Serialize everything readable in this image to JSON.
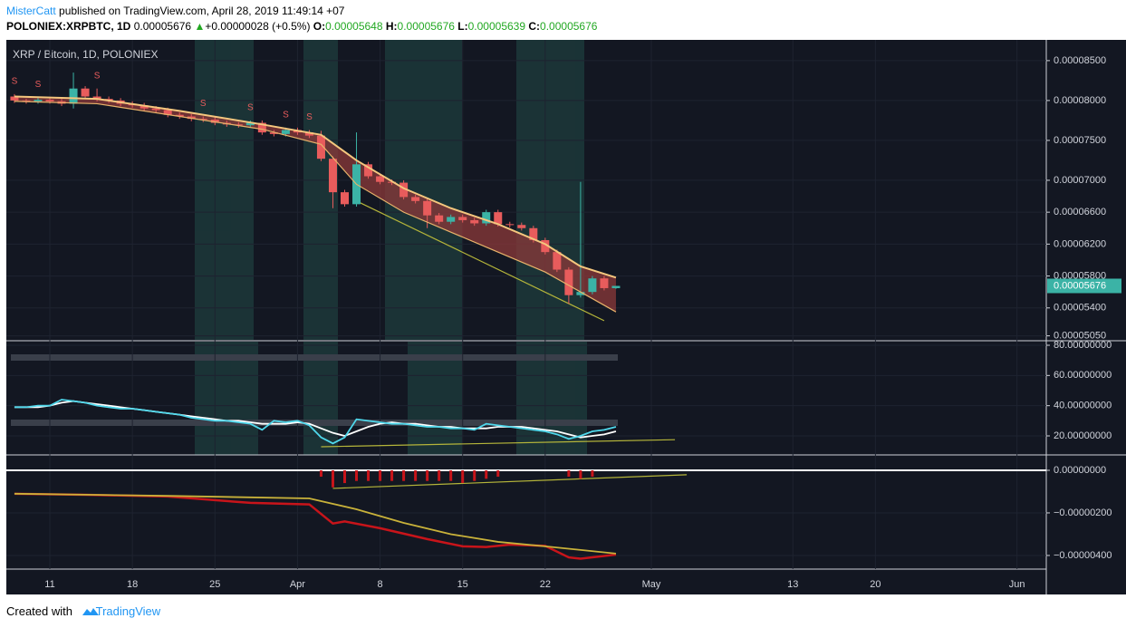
{
  "header": {
    "author": "MisterCatt",
    "published": "published on TradingView.com, April 28, 2019 11:49:14 +07",
    "symbol": "POLONIEX:XRPBTC, 1D",
    "price": "0.00005676",
    "arrow": "▲",
    "change": "+0.00000028 (+0.5%)",
    "open_label": "O:",
    "open": "0.00005648",
    "high_label": "H:",
    "high": "0.00005676",
    "low_label": "L:",
    "low": "0.00005639",
    "close_label": "C:",
    "close": "0.00005676"
  },
  "footer": {
    "created": "Created with",
    "brand": "TradingView"
  },
  "chart_data": [
    {
      "type": "candlestick",
      "title": "XRP / Bitcoin, 1D, POLONIEX",
      "up_color": "#3bb3a6",
      "down_color": "#e85c5c",
      "x": [
        "Mar 8",
        "Mar 9",
        "Mar 10",
        "Mar 11",
        "Mar 12",
        "Mar 13",
        "Mar 14",
        "Mar 15",
        "Mar 16",
        "Mar 17",
        "Mar 18",
        "Mar 19",
        "Mar 20",
        "Mar 21",
        "Mar 22",
        "Mar 23",
        "Mar 24",
        "Mar 25",
        "Mar 26",
        "Mar 27",
        "Mar 28",
        "Mar 29",
        "Mar 30",
        "Mar 31",
        "Apr 1",
        "Apr 2",
        "Apr 3",
        "Apr 4",
        "Apr 5",
        "Apr 6",
        "Apr 7",
        "Apr 8",
        "Apr 9",
        "Apr 10",
        "Apr 11",
        "Apr 12",
        "Apr 13",
        "Apr 14",
        "Apr 15",
        "Apr 16",
        "Apr 17",
        "Apr 18",
        "Apr 19",
        "Apr 20",
        "Apr 21",
        "Apr 22",
        "Apr 23",
        "Apr 24",
        "Apr 25",
        "Apr 26",
        "Apr 27",
        "Apr 28"
      ],
      "open": [
        8.05e-05,
        8e-05,
        7.99e-05,
        8.01e-05,
        7.99e-05,
        7.96e-05,
        8.15e-05,
        8.05e-05,
        8.02e-05,
        8e-05,
        7.96e-05,
        7.94e-05,
        7.9e-05,
        7.88e-05,
        7.82e-05,
        7.8e-05,
        7.77e-05,
        7.76e-05,
        7.72e-05,
        7.7e-05,
        7.69e-05,
        7.72e-05,
        7.6e-05,
        7.58e-05,
        7.63e-05,
        7.6e-05,
        7.56e-05,
        7.27e-05,
        6.85e-05,
        6.7e-05,
        7.2e-05,
        7.05e-05,
        6.98e-05,
        6.97e-05,
        6.79e-05,
        6.74e-05,
        6.56e-05,
        6.48e-05,
        6.54e-05,
        6.5e-05,
        6.46e-05,
        6.6e-05,
        6.45e-05,
        6.44e-05,
        6.4e-05,
        6.25e-05,
        6.1e-05,
        5.88e-05,
        5.56e-05,
        5.6e-05,
        5.77e-05,
        5.648e-05
      ],
      "high": [
        8.08e-05,
        8.02e-05,
        8.04e-05,
        8.04e-05,
        8.02e-05,
        8.35e-05,
        8.18e-05,
        8.15e-05,
        8.05e-05,
        8.03e-05,
        7.99e-05,
        7.97e-05,
        7.93e-05,
        7.91e-05,
        7.85e-05,
        7.83e-05,
        7.8e-05,
        7.79e-05,
        7.75e-05,
        7.73e-05,
        7.75e-05,
        7.75e-05,
        7.63e-05,
        7.66e-05,
        7.66e-05,
        7.63e-05,
        7.62e-05,
        7.3e-05,
        6.88e-05,
        7.6e-05,
        7.23e-05,
        7.08e-05,
        7.01e-05,
        7e-05,
        6.82e-05,
        6.77e-05,
        6.59e-05,
        6.57e-05,
        6.57e-05,
        6.53e-05,
        6.63e-05,
        6.63e-05,
        6.48e-05,
        6.47e-05,
        6.43e-05,
        6.28e-05,
        6.13e-05,
        5.91e-05,
        6.98e-05,
        5.8e-05,
        5.8e-05,
        5.676e-05
      ],
      "low": [
        7.97e-05,
        7.96e-05,
        7.96e-05,
        7.96e-05,
        7.93e-05,
        7.9e-05,
        8.02e-05,
        7.99e-05,
        7.97e-05,
        7.93e-05,
        7.91e-05,
        7.87e-05,
        7.85e-05,
        7.79e-05,
        7.77e-05,
        7.74e-05,
        7.73e-05,
        7.69e-05,
        7.67e-05,
        7.66e-05,
        7.66e-05,
        7.57e-05,
        7.55e-05,
        7.55e-05,
        7.57e-05,
        7.53e-05,
        7.24e-05,
        6.65e-05,
        6.67e-05,
        6.67e-05,
        7.02e-05,
        6.95e-05,
        6.94e-05,
        6.76e-05,
        6.71e-05,
        6.4e-05,
        6.45e-05,
        6.45e-05,
        6.47e-05,
        6.43e-05,
        6.43e-05,
        6.42e-05,
        6.41e-05,
        6.37e-05,
        6.22e-05,
        6.07e-05,
        5.85e-05,
        5.45e-05,
        5.53e-05,
        5.57e-05,
        5.62e-05,
        5.639e-05
      ],
      "close": [
        8e-05,
        7.99e-05,
        8.01e-05,
        7.99e-05,
        7.96e-05,
        8.15e-05,
        8.05e-05,
        8.02e-05,
        8e-05,
        7.96e-05,
        7.94e-05,
        7.9e-05,
        7.88e-05,
        7.82e-05,
        7.8e-05,
        7.77e-05,
        7.76e-05,
        7.72e-05,
        7.7e-05,
        7.69e-05,
        7.72e-05,
        7.6e-05,
        7.58e-05,
        7.63e-05,
        7.6e-05,
        7.56e-05,
        7.27e-05,
        6.85e-05,
        6.7e-05,
        7.2e-05,
        7.05e-05,
        6.98e-05,
        6.97e-05,
        6.79e-05,
        6.74e-05,
        6.56e-05,
        6.48e-05,
        6.54e-05,
        6.5e-05,
        6.46e-05,
        6.6e-05,
        6.45e-05,
        6.44e-05,
        6.4e-05,
        6.25e-05,
        6.1e-05,
        5.88e-05,
        5.56e-05,
        5.6e-05,
        5.77e-05,
        5.648e-05,
        5.676e-05
      ],
      "lines": [
        {
          "color": "#f5c77e",
          "x": [
            "Mar 8",
            "Mar 15",
            "Mar 22",
            "Mar 29",
            "Apr 3",
            "Apr 6",
            "Apr 10",
            "Apr 14",
            "Apr 18",
            "Apr 22",
            "Apr 25",
            "Apr 28"
          ],
          "values": [
            8.05e-05,
            8.02e-05,
            7.87e-05,
            7.7e-05,
            7.57e-05,
            7.25e-05,
            6.9e-05,
            6.65e-05,
            6.45e-05,
            6.2e-05,
            5.92e-05,
            5.78e-05
          ]
        },
        {
          "color": "#e8b36a",
          "x": [
            "Mar 8",
            "Mar 15",
            "Mar 22",
            "Mar 29",
            "Apr 3",
            "Apr 6",
            "Apr 10",
            "Apr 14",
            "Apr 18",
            "Apr 22",
            "Apr 25",
            "Apr 28"
          ],
          "values": [
            7.99e-05,
            7.96e-05,
            7.8e-05,
            7.64e-05,
            7.45e-05,
            6.95e-05,
            6.6e-05,
            6.35e-05,
            6.1e-05,
            5.85e-05,
            5.6e-05,
            5.35e-05
          ]
        }
      ],
      "ribbon_color": "#8c3a3a",
      "trendline": {
        "color": "#b5b53a",
        "x": [
          "Apr 6",
          "Apr 27"
        ],
        "values": [
          6.74e-05,
          5.24e-05
        ]
      },
      "signal_label": "S",
      "signal_dates": [
        "Mar 8",
        "Mar 10",
        "Mar 15",
        "Mar 24",
        "Mar 28",
        "Mar 31",
        "Apr 2"
      ],
      "signal_color": "#e85c5c",
      "last_price": {
        "value": 5.676e-05,
        "label": "0.00005676"
      },
      "ylim": [
        5e-05,
        8.76e-05
      ],
      "yticks": [
        {
          "value": 8.5e-05,
          "label": "0.00008500"
        },
        {
          "value": 8e-05,
          "label": "0.00008000"
        },
        {
          "value": 7.5e-05,
          "label": "0.00007500"
        },
        {
          "value": 7e-05,
          "label": "0.00007000"
        },
        {
          "value": 6.6e-05,
          "label": "0.00006600"
        },
        {
          "value": 6.2e-05,
          "label": "0.00006200"
        },
        {
          "value": 5.8e-05,
          "label": "0.00005800"
        },
        {
          "value": 5.4e-05,
          "label": "0.00005400"
        },
        {
          "value": 5.05e-05,
          "label": "0.00005050"
        }
      ],
      "xticks": [
        {
          "value": "Mar 11",
          "label": "11"
        },
        {
          "value": "Mar 18",
          "label": "18"
        },
        {
          "value": "Mar 25",
          "label": "25"
        },
        {
          "value": "Apr 1",
          "label": "Apr"
        },
        {
          "value": "Apr 8",
          "label": "8"
        },
        {
          "value": "Apr 15",
          "label": "15"
        },
        {
          "value": "Apr 22",
          "label": "22"
        },
        {
          "value": "May 1",
          "label": "May"
        },
        {
          "value": "May 13",
          "label": "13"
        },
        {
          "value": "May 20",
          "label": "20"
        },
        {
          "value": "Jun 1",
          "label": "Jun"
        }
      ]
    },
    {
      "type": "line",
      "x": [
        "Mar 8",
        "Mar 9",
        "Mar 10",
        "Mar 11",
        "Mar 12",
        "Mar 13",
        "Mar 14",
        "Mar 15",
        "Mar 16",
        "Mar 17",
        "Mar 18",
        "Mar 19",
        "Mar 20",
        "Mar 21",
        "Mar 22",
        "Mar 23",
        "Mar 24",
        "Mar 25",
        "Mar 26",
        "Mar 27",
        "Mar 28",
        "Mar 29",
        "Mar 30",
        "Mar 31",
        "Apr 1",
        "Apr 2",
        "Apr 3",
        "Apr 4",
        "Apr 5",
        "Apr 6",
        "Apr 7",
        "Apr 8",
        "Apr 9",
        "Apr 10",
        "Apr 11",
        "Apr 12",
        "Apr 13",
        "Apr 14",
        "Apr 15",
        "Apr 16",
        "Apr 17",
        "Apr 18",
        "Apr 19",
        "Apr 20",
        "Apr 21",
        "Apr 22",
        "Apr 23",
        "Apr 24",
        "Apr 25",
        "Apr 26",
        "Apr 27",
        "Apr 28"
      ],
      "series": [
        {
          "color": "#ffffff",
          "values": [
            39,
            39,
            39,
            40,
            42,
            43,
            42,
            41,
            40,
            39,
            38,
            37,
            36,
            35,
            34,
            33,
            32,
            31,
            30,
            30,
            29,
            28,
            28,
            28,
            29,
            28,
            25,
            22,
            20,
            23,
            26,
            28,
            29,
            28,
            28,
            27,
            26,
            26,
            25,
            25,
            25,
            26,
            26,
            26,
            25,
            24,
            23,
            21,
            19,
            20,
            21,
            23
          ]
        },
        {
          "color": "#4fd8ec",
          "values": [
            39,
            39,
            40,
            40,
            44,
            43,
            42,
            40,
            39,
            38,
            38,
            37,
            36,
            35,
            34,
            32,
            31,
            30,
            30,
            29,
            28,
            24,
            30,
            29,
            30,
            27,
            19,
            15,
            19,
            31,
            30,
            29,
            28,
            28,
            27,
            26,
            26,
            25,
            25,
            24,
            28,
            27,
            26,
            25,
            24,
            23,
            21,
            18,
            20,
            23,
            24,
            26
          ]
        }
      ],
      "trendline": {
        "color": "#b5b53a",
        "x": [
          "Apr 3",
          "May 3"
        ],
        "values": [
          12.8,
          17.5
        ]
      },
      "ylim": [
        7.4,
        82.4
      ],
      "yticks": [
        {
          "value": 80,
          "label": "80.00000000"
        },
        {
          "value": 60,
          "label": "60.00000000"
        },
        {
          "value": 40,
          "label": "40.00000000"
        },
        {
          "value": 20,
          "label": "20.00000000"
        }
      ]
    },
    {
      "type": "line",
      "series": [
        {
          "color": "#c8141a",
          "x": [
            "Mar 8",
            "Mar 14",
            "Mar 21",
            "Mar 28",
            "Apr 2",
            "Apr 4",
            "Apr 5",
            "Apr 8",
            "Apr 12",
            "Apr 15",
            "Apr 17",
            "Apr 19",
            "Apr 22",
            "Apr 24",
            "Apr 25",
            "Apr 28"
          ],
          "values": [
            -1.1e-07,
            -1.15e-07,
            -1.23e-07,
            -1.53e-07,
            -1.6e-07,
            -2.5e-07,
            -2.4e-07,
            -2.72e-07,
            -3.23e-07,
            -3.57e-07,
            -3.6e-07,
            -3.49e-07,
            -3.55e-07,
            -4.09e-07,
            -4.15e-07,
            -3.96e-07
          ]
        },
        {
          "color": "#c9b23a",
          "x": [
            "Mar 8",
            "Mar 21",
            "Apr 2",
            "Apr 6",
            "Apr 10",
            "Apr 14",
            "Apr 18",
            "Apr 22",
            "Apr 28"
          ],
          "values": [
            -1.1e-07,
            -1.2e-07,
            -1.32e-07,
            -1.83e-07,
            -2.47e-07,
            -3e-07,
            -3.36e-07,
            -3.57e-07,
            -3.91e-07
          ]
        }
      ],
      "histogram": {
        "color": "#c8141a",
        "x": [
          "Apr 3",
          "Apr 4",
          "Apr 5",
          "Apr 6",
          "Apr 7",
          "Apr 8",
          "Apr 9",
          "Apr 10",
          "Apr 11",
          "Apr 12",
          "Apr 13",
          "Apr 14",
          "Apr 15",
          "Apr 16",
          "Apr 17",
          "Apr 18",
          "Apr 24",
          "Apr 25",
          "Apr 26"
        ],
        "values": [
          -3e-08,
          -8e-08,
          -6e-08,
          -5e-08,
          -5e-08,
          -5e-08,
          -5e-08,
          -5e-08,
          -5e-08,
          -5e-08,
          -5e-08,
          -5e-08,
          -6e-08,
          -5e-08,
          -4e-08,
          -3e-08,
          -3e-08,
          -4e-08,
          -3e-08
        ]
      },
      "trendline": {
        "color": "#b5b53a",
        "x": [
          "Apr 4",
          "May 4"
        ],
        "values": [
          -8.5e-08,
          -2.1e-08
        ]
      },
      "ylim": [
        -4.64e-07,
        6.8e-08
      ],
      "yticks": [
        {
          "value": 0,
          "label": "0.00000000"
        },
        {
          "value": -2e-07,
          "label": "−0.00000200"
        },
        {
          "value": -4e-07,
          "label": "−0.00000400"
        }
      ]
    }
  ]
}
